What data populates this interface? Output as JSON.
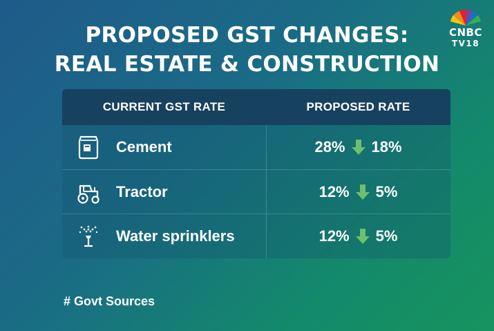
{
  "title": {
    "line1": "PROPOSED GST CHANGES:",
    "line2": "REAL ESTATE & CONSTRUCTION"
  },
  "logo": {
    "line1": "CNBC",
    "line2": "TV18"
  },
  "table": {
    "headers": [
      "CURRENT GST RATE",
      "PROPOSED RATE"
    ],
    "rows": [
      {
        "icon": "cement-bag-icon",
        "item": "Cement",
        "current": "28%",
        "proposed": "18%"
      },
      {
        "icon": "tractor-icon",
        "item": "Tractor",
        "current": "12%",
        "proposed": "5%"
      },
      {
        "icon": "water-sprinkler-icon",
        "item": "Water sprinklers",
        "current": "12%",
        "proposed": "5%"
      }
    ]
  },
  "arrow_color": "#6cc070",
  "source": "# Govt Sources"
}
